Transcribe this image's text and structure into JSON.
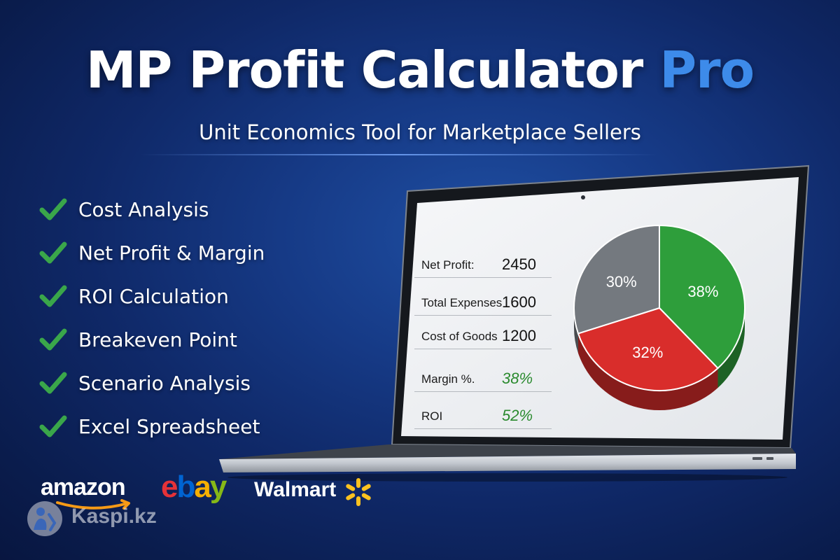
{
  "header": {
    "title_main": "MP Profit Calculator",
    "title_accent": "Pro",
    "subtitle": "Unit Economics Tool for Marketplace Sellers"
  },
  "features": [
    {
      "label": "Cost Analysis"
    },
    {
      "label": "Net Profit & Margin"
    },
    {
      "label": "ROI Calculation"
    },
    {
      "label": "Breakeven Point"
    },
    {
      "label": "Scenario Analysis"
    },
    {
      "label": "Excel Spreadsheet"
    }
  ],
  "spreadsheet": {
    "rows": [
      {
        "label": "Net Profit:",
        "value": "2450"
      },
      {
        "label": "Total Expenses",
        "value": "1600"
      },
      {
        "label": "Cost of Goods",
        "value": "1200"
      },
      {
        "label": "Margin %.",
        "value": "38%"
      },
      {
        "label": "ROI",
        "value": "52%"
      }
    ]
  },
  "chart_data": {
    "type": "pie",
    "slices": [
      {
        "label": "38%",
        "value": 38,
        "color": "#2e9e3b"
      },
      {
        "label": "32%",
        "value": 32,
        "color": "#d92d2b"
      },
      {
        "label": "30%",
        "value": 30,
        "color": "#74797f"
      }
    ]
  },
  "brands": {
    "amazon": "amazon",
    "ebay": [
      "e",
      "b",
      "a",
      "y"
    ],
    "walmart": "Walmart",
    "kaspi": "Kaspi.kz"
  },
  "colors": {
    "accent": "#3d8bea",
    "check": "#3aa64a",
    "amazon_smile": "#f59a16",
    "walmart_spark": "#fcc220"
  }
}
